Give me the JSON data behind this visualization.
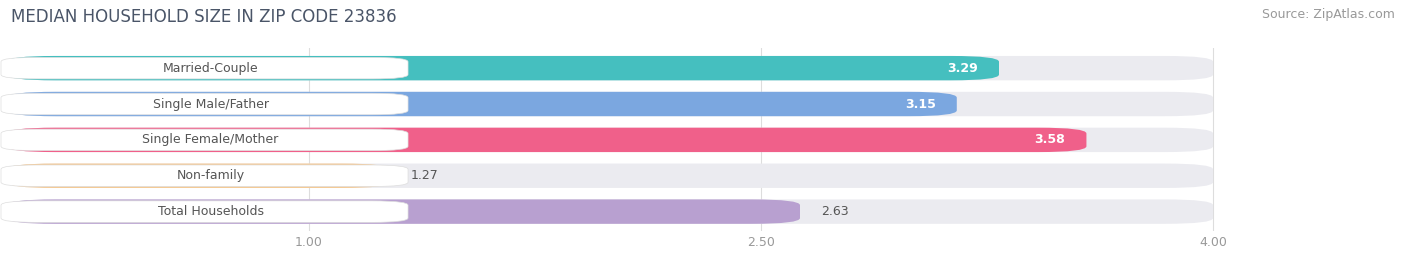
{
  "title": "MEDIAN HOUSEHOLD SIZE IN ZIP CODE 23836",
  "source": "Source: ZipAtlas.com",
  "categories": [
    "Married-Couple",
    "Single Male/Father",
    "Single Female/Mother",
    "Non-family",
    "Total Households"
  ],
  "values": [
    3.29,
    3.15,
    3.58,
    1.27,
    2.63
  ],
  "bar_colors": [
    "#45bfbf",
    "#7ba7e0",
    "#f0608a",
    "#f5c890",
    "#b8a0d0"
  ],
  "value_inside": [
    true,
    true,
    true,
    false,
    false
  ],
  "xlim_min": 0.0,
  "xlim_max": 4.5,
  "data_min": 0.0,
  "data_max": 4.0,
  "xticks": [
    1.0,
    2.5,
    4.0
  ],
  "xticklabels": [
    "1.00",
    "2.50",
    "4.00"
  ],
  "background_color": "#ffffff",
  "bar_bg_color": "#ebebf0",
  "bar_height": 0.68,
  "title_color": "#4a5568",
  "source_color": "#999999",
  "title_fontsize": 12,
  "source_fontsize": 9,
  "label_fontsize": 9,
  "value_fontsize": 9,
  "tick_fontsize": 9
}
